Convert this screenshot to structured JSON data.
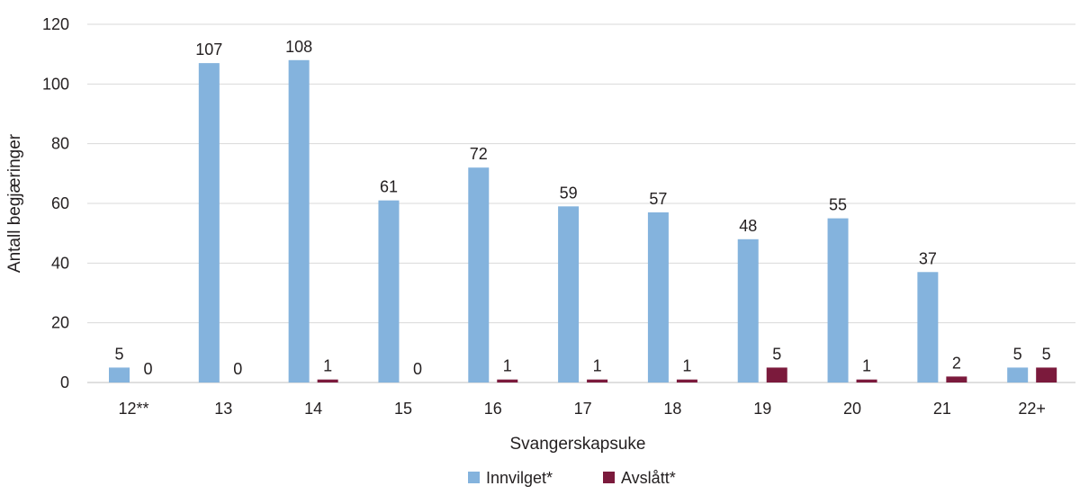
{
  "chart_data": {
    "type": "bar",
    "categories": [
      "12**",
      "13",
      "14",
      "15",
      "16",
      "17",
      "18",
      "19",
      "20",
      "21",
      "22+"
    ],
    "series": [
      {
        "name": "Innvilget*",
        "color": "#84b3dd",
        "values": [
          5,
          107,
          108,
          61,
          72,
          59,
          57,
          48,
          55,
          37,
          5
        ]
      },
      {
        "name": "Avslått*",
        "color": "#7b1a3c",
        "values": [
          0,
          0,
          1,
          0,
          1,
          1,
          1,
          5,
          1,
          2,
          5
        ]
      }
    ],
    "xlabel": "Svangerskapsuke",
    "ylabel": "Antall begjæringer",
    "ylim": [
      0,
      120
    ],
    "yticks": [
      0,
      20,
      40,
      60,
      80,
      100,
      120
    ],
    "grid": true,
    "legend": "bottom-center",
    "data_labels": true
  }
}
